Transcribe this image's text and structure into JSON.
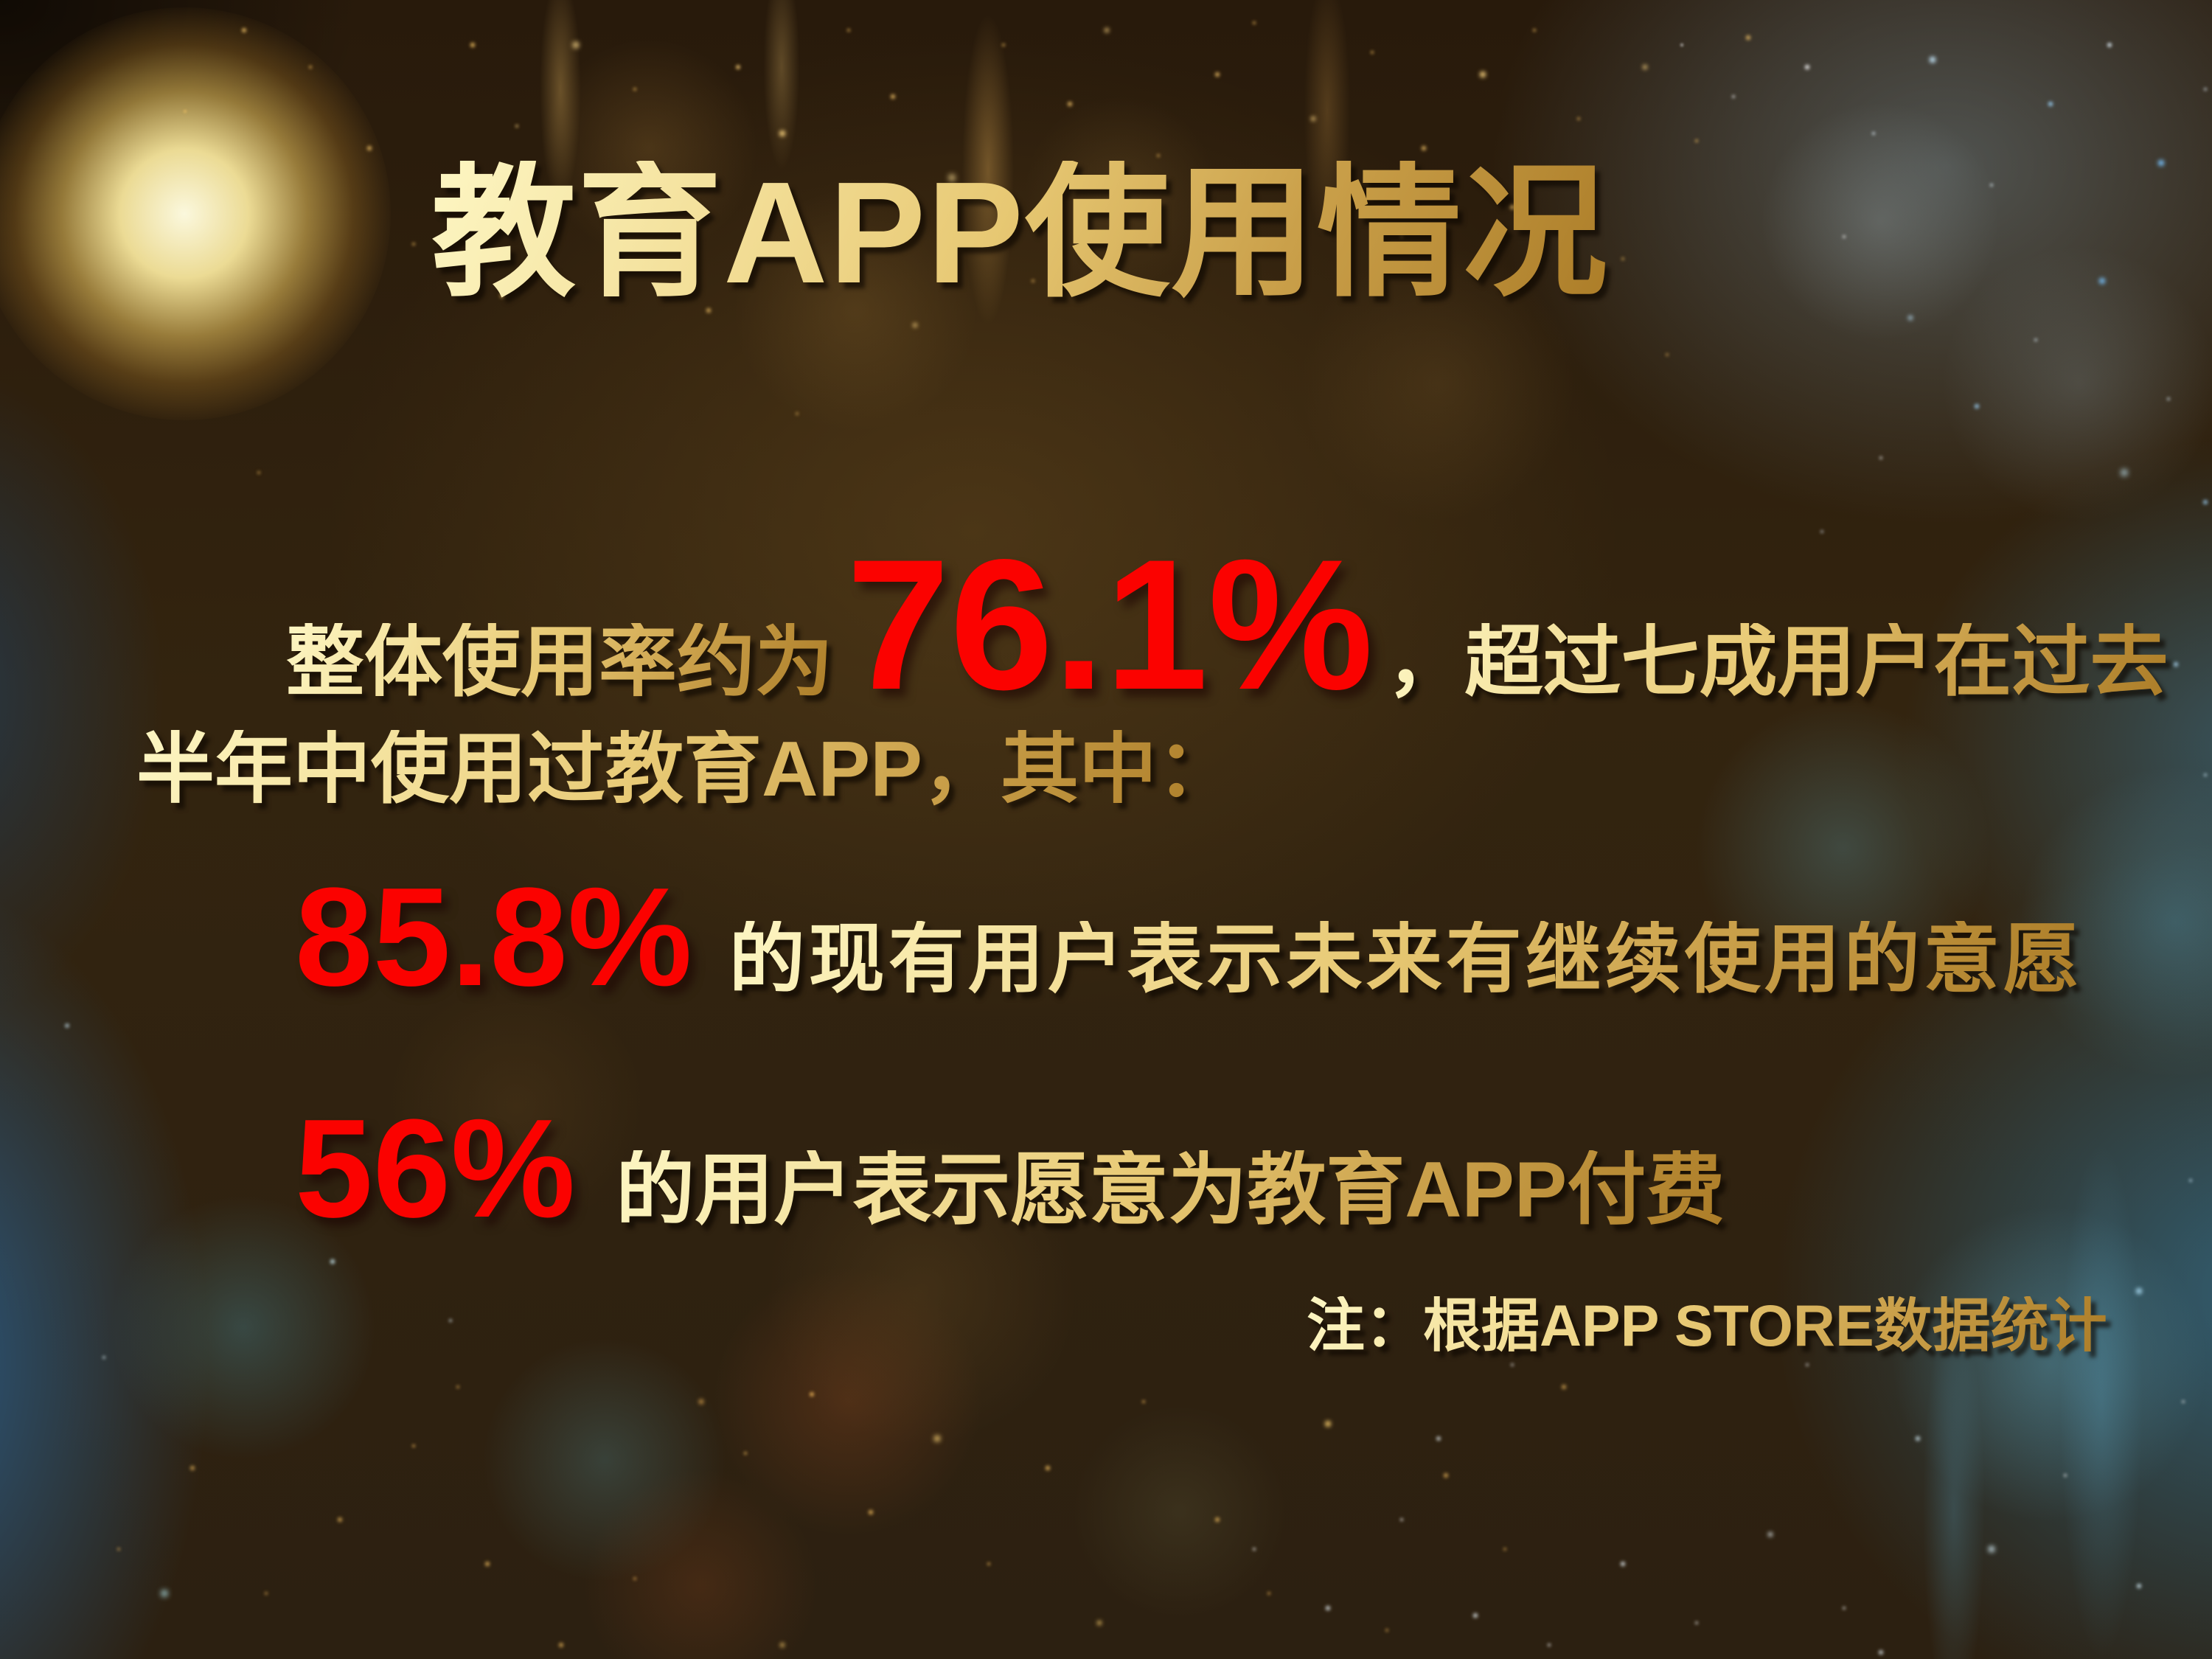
{
  "slide": {
    "title": "教育APP使用情况",
    "body": {
      "line1_prefix": "整体使用率约为",
      "line1_value": "76.1%",
      "line1_suffix": "，超过七成用户在过去",
      "line2": "半年中使用过教育APP，其中：",
      "stat1_value": "85.8%",
      "stat1_text": "的现有用户表示未来有继续使用的意愿",
      "stat2_value": "56%",
      "stat2_text": "的用户表示愿意为教育APP付费",
      "note": "注：根据APP STORE数据统计"
    },
    "colors": {
      "highlight_red": "#fb0200",
      "gold_light": "#fdf6c3",
      "gold_dark": "#ac7d28",
      "background_brown": "#33240f",
      "background_blue": "#2d6fa8"
    }
  }
}
